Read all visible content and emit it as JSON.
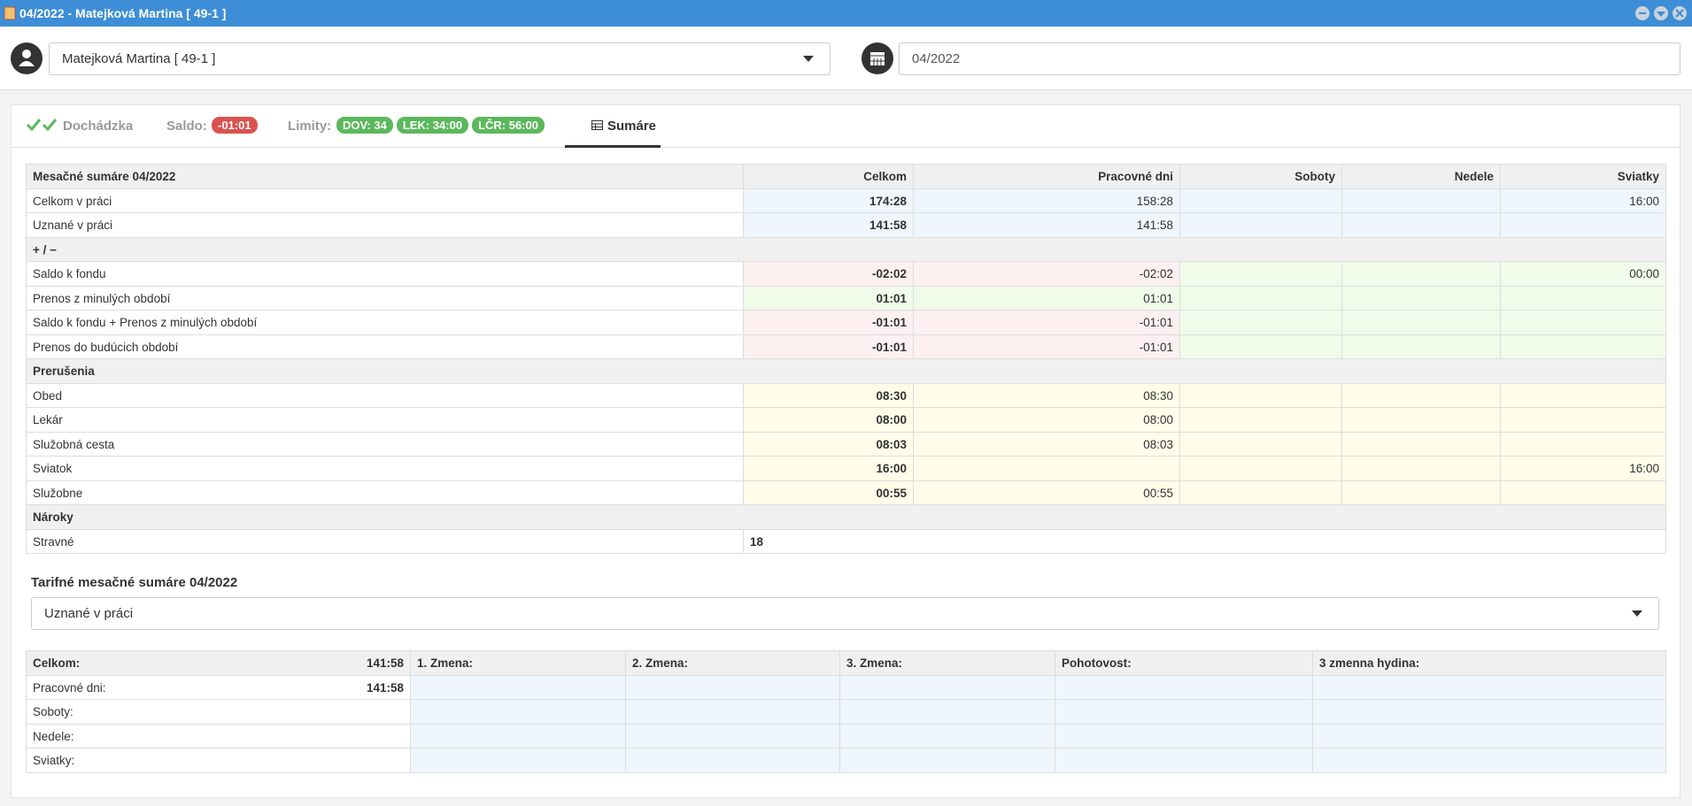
{
  "window": {
    "title": "04/2022 - Matejková Martina [ 49-1 ]"
  },
  "toolbar": {
    "person": "Matejková Martina [ 49-1 ]",
    "period": "04/2022"
  },
  "tabs": {
    "attendance": "Dochádzka",
    "balance": {
      "label": "Saldo:",
      "badge": "-01:01"
    },
    "limits": {
      "label": "Limity:",
      "badges": [
        "DOV: 34",
        "LEK: 34:00",
        "LČR: 56:00"
      ]
    },
    "summary": "Sumáre"
  },
  "summary_table": {
    "columns": [
      "Mesačné sumáre 04/2022",
      "Celkom",
      "Pracovné dni",
      "Soboty",
      "Nedele",
      "Sviatky"
    ],
    "sections": [
      {
        "rows": [
          {
            "label": "Celkom v práci",
            "cells": [
              "174:28",
              "158:28",
              null,
              null,
              "16:00"
            ]
          },
          {
            "label": "Uznané v práci",
            "cells": [
              "141:58",
              "141:58",
              null,
              null,
              null
            ]
          }
        ]
      },
      {
        "title": "+ / −",
        "rows": [
          {
            "label": "Saldo k fondu",
            "cells": [
              "-02:02",
              "-02:02",
              null,
              null,
              "00:00"
            ]
          },
          {
            "label": "Prenos z minulých období",
            "cells": [
              "01:01",
              "01:01",
              null,
              null,
              null
            ]
          },
          {
            "label": "Saldo k fondu + Prenos z minulých období",
            "cells": [
              "-01:01",
              "-01:01",
              null,
              null,
              null
            ]
          },
          {
            "label": "Prenos do budúcich období",
            "cells": [
              "-01:01",
              "-01:01",
              null,
              null,
              null
            ]
          }
        ]
      },
      {
        "title": "Prerušenia",
        "rows": [
          {
            "label": "Obed",
            "cells": [
              "08:30",
              "08:30",
              null,
              null,
              null
            ]
          },
          {
            "label": "Lekár",
            "cells": [
              "08:00",
              "08:00",
              null,
              null,
              null
            ]
          },
          {
            "label": "Služobná cesta",
            "cells": [
              "08:03",
              "08:03",
              null,
              null,
              null
            ]
          },
          {
            "label": "Sviatok",
            "cells": [
              "16:00",
              null,
              null,
              null,
              "16:00"
            ]
          },
          {
            "label": "Služobne",
            "cells": [
              "00:55",
              "00:55",
              null,
              null,
              null
            ]
          }
        ]
      },
      {
        "title": "Nároky",
        "rows": [
          {
            "label": "Stravné",
            "cells": [
              "18"
            ]
          }
        ]
      }
    ]
  },
  "tariff": {
    "title": "Tarifné mesačné sumáre 04/2022",
    "select": "Uznané v práci",
    "table": {
      "header": [
        "Celkom:",
        "141:58",
        "1. Zmena:",
        "2. Zmena:",
        "3. Zmena:",
        "Pohotovost:",
        "3 zmenna hydina:"
      ],
      "rows": [
        [
          "Pracovné dni:",
          "141:58"
        ],
        [
          "Soboty:",
          null
        ],
        [
          "Nedele:",
          null
        ],
        [
          "Sviatky:",
          null
        ]
      ]
    }
  }
}
